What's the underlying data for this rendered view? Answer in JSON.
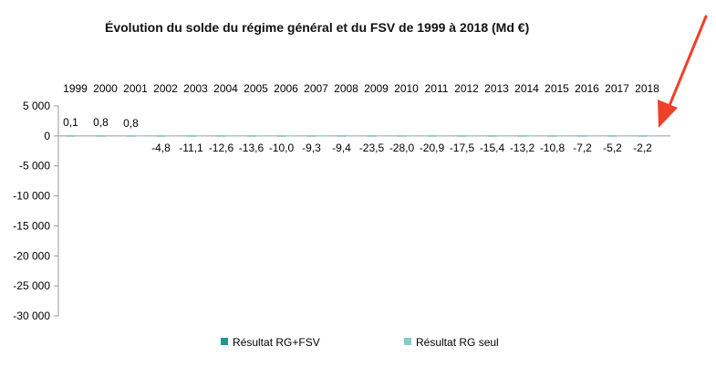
{
  "chart_data": {
    "type": "bar",
    "title": "Évolution du solde du régime général et du FSV de 1999 à 2018 (Md €)",
    "categories": [
      "1999",
      "2000",
      "2001",
      "2002",
      "2003",
      "2004",
      "2005",
      "2006",
      "2007",
      "2008",
      "2009",
      "2010",
      "2011",
      "2012",
      "2013",
      "2014",
      "2015",
      "2016",
      "2017",
      "2018"
    ],
    "series": [
      {
        "name": "Résultat RG+FSV",
        "color": "#1a9a8a",
        "values": [
          0.1,
          0.8,
          0.8,
          -4.8,
          -11.1,
          -12.6,
          -13.6,
          -10.0,
          -9.3,
          -9.4,
          -23.5,
          -28.0,
          -20.9,
          -17.5,
          -15.4,
          -13.2,
          -10.8,
          -7.2,
          -5.2,
          -2.2
        ]
      },
      {
        "name": "Résultat RG seul",
        "color": "#84cdc8",
        "values": [
          0,
          0,
          1.2,
          -3.5,
          -10.2,
          -11.9,
          -11.6,
          -8.7,
          -9.5,
          -10.2,
          -20.3,
          -23.9,
          -17.4,
          -13.3,
          -12.5,
          -9.7,
          -6.8,
          -3.4,
          -1.6,
          0.5
        ]
      }
    ],
    "data_labels": [
      "0,1",
      "0,8",
      "0,8",
      "-4,8",
      "-11,1",
      "-12,6",
      "-13,6",
      "-10,0",
      "-9,3",
      "-9,4",
      "-23,5",
      "-28,0",
      "-20,9",
      "-17,5",
      "-15,4",
      "-13,2",
      "-10,8",
      "-7,2",
      "-5,2",
      "-2,2"
    ],
    "y_ticks": [
      5000,
      0,
      -5000,
      -10000,
      -15000,
      -20000,
      -25000,
      -30000
    ],
    "y_tick_labels": [
      "5 000",
      "0",
      "-5 000",
      "-10 000",
      "-15 000",
      "-20 000",
      "-25 000",
      "-30 000"
    ],
    "ylim": [
      -30000,
      5000
    ],
    "xlabel": "",
    "ylabel": "",
    "grid": false,
    "legend": "bottom",
    "annotation": {
      "type": "arrow",
      "color": "#f0402a",
      "target": "2018"
    }
  }
}
